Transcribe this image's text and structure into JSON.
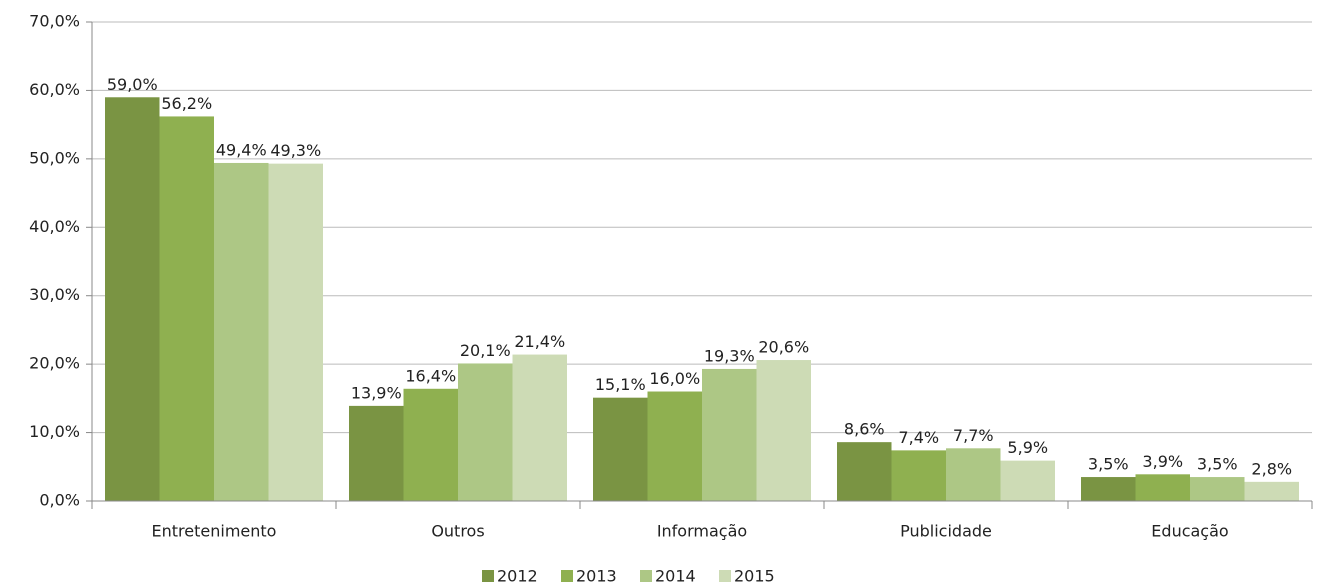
{
  "chart_data": {
    "type": "bar",
    "categories": [
      "Entretenimento",
      "Outros",
      "Informação",
      "Publicidade",
      "Educação"
    ],
    "series": [
      {
        "name": "2012",
        "color": "#7a9443",
        "values": [
          59.0,
          13.9,
          15.1,
          8.6,
          3.5
        ],
        "value_labels": [
          "59,0%",
          "13,9%",
          "15,1%",
          "8,6%",
          "3,5%"
        ]
      },
      {
        "name": "2013",
        "color": "#8fb050",
        "values": [
          56.2,
          16.4,
          16.0,
          7.4,
          3.9
        ],
        "value_labels": [
          "56,2%",
          "16,4%",
          "16,0%",
          "7,4%",
          "3,9%"
        ]
      },
      {
        "name": "2014",
        "color": "#adc785",
        "values": [
          49.4,
          20.1,
          19.3,
          7.7,
          3.5
        ],
        "value_labels": [
          "49,4%",
          "20,1%",
          "19,3%",
          "7,7%",
          "3,5%"
        ]
      },
      {
        "name": "2015",
        "color": "#cddbb5",
        "values": [
          49.3,
          21.4,
          20.6,
          5.9,
          2.8
        ],
        "value_labels": [
          "49,3%",
          "21,4%",
          "20,6%",
          "5,9%",
          "2,8%"
        ]
      }
    ],
    "ylim": [
      0,
      70
    ],
    "yticks": [
      {
        "value": 0,
        "label": "0,0%"
      },
      {
        "value": 10,
        "label": "10,0%"
      },
      {
        "value": 20,
        "label": "20,0%"
      },
      {
        "value": 30,
        "label": "30,0%"
      },
      {
        "value": 40,
        "label": "40,0%"
      },
      {
        "value": 50,
        "label": "50,0%"
      },
      {
        "value": 60,
        "label": "60,0%"
      },
      {
        "value": 70,
        "label": "70,0%"
      }
    ],
    "grid": true,
    "legend": "bottom"
  }
}
